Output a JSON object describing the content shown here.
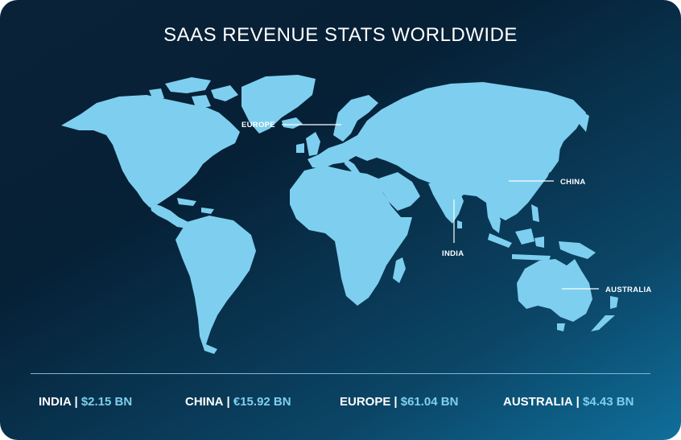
{
  "title": "SAAS REVENUE STATS WORLDWIDE",
  "map_labels": {
    "europe": "EUROPE",
    "china": "CHINA",
    "india": "INDIA",
    "australia": "AUSTRALIA"
  },
  "stats": [
    {
      "region": "INDIA",
      "separator": "|",
      "value": "$2.15 BN"
    },
    {
      "region": "CHINA",
      "separator": "|",
      "value": "€15.92 BN"
    },
    {
      "region": "EUROPE",
      "separator": "|",
      "value": "$61.04 BN"
    },
    {
      "region": "AUSTRALIA",
      "separator": "|",
      "value": "$4.43 BN"
    }
  ],
  "colors": {
    "land": "#7ecfef",
    "background_dark": "#062036",
    "background_light": "#0f6f9b",
    "text": "#ffffff",
    "value_accent": "#7ecfef"
  }
}
